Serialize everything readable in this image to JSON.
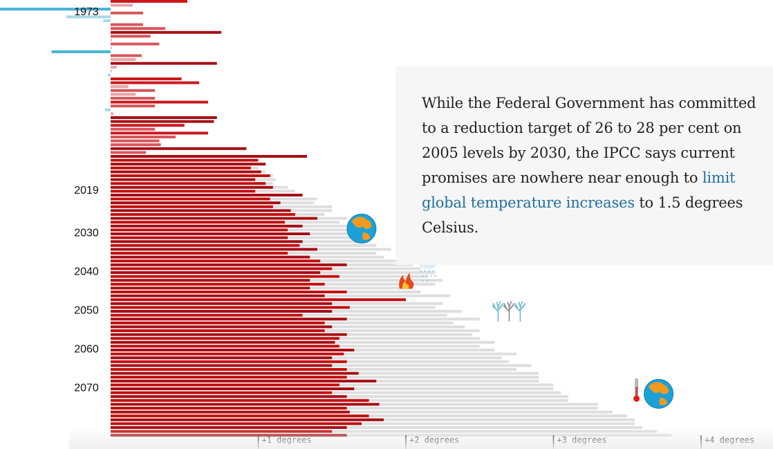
{
  "chart_data": {
    "type": "bar",
    "title": "",
    "orientation": "horizontal",
    "description": "Annual temperature anomaly bars (historical red/blue) with projected additional warming (grey)",
    "year_labels": [
      {
        "year": 1973,
        "label": "1973"
      },
      {
        "year": 2019,
        "label": "2019"
      },
      {
        "year": 2030,
        "label": "2030"
      },
      {
        "year": 2040,
        "label": "2040"
      },
      {
        "year": 2050,
        "label": "2050"
      },
      {
        "year": 2060,
        "label": "2060"
      },
      {
        "year": 2070,
        "label": "2070"
      }
    ],
    "x_ticks": [
      {
        "value": 1,
        "label": "+1 degrees"
      },
      {
        "value": 2,
        "label": "+2 degrees"
      },
      {
        "value": 3,
        "label": "+3 degrees"
      },
      {
        "value": 4,
        "label": "+4 degrees"
      }
    ],
    "xlim": [
      -0.75,
      4.4
    ],
    "start_year": 1971,
    "end_year": 2079,
    "historical_anomaly": [
      0.52,
      0.15,
      -0.75,
      0.22,
      -0.3,
      -0.05,
      0.22,
      0.37,
      0.75,
      0.27,
      0.0,
      0.33,
      0.0,
      -0.4,
      0.21,
      0.17,
      0.72,
      0.04,
      0.0,
      -0.02,
      0.48,
      0.6,
      0.12,
      0.3,
      0.17,
      0.3,
      0.66,
      0.3,
      -0.04,
      0.02,
      0.72,
      0.7,
      0.5,
      0.3,
      0.66,
      0.44,
      0.33,
      0.34,
      0.92,
      0.24,
      1.33
    ],
    "projected_warming": [
      {
        "actual": 1.0,
        "projection": 1.0
      },
      {
        "actual": 1.05,
        "projection": 1.05
      },
      {
        "actual": 0.95,
        "projection": 1.0
      },
      {
        "actual": 1.02,
        "projection": 1.05
      },
      {
        "actual": 1.08,
        "projection": 1.1
      },
      {
        "actual": 0.98,
        "projection": 1.12
      },
      {
        "actual": 1.05,
        "projection": 1.1
      },
      {
        "actual": 1.1,
        "projection": 1.2
      },
      {
        "actual": 0.98,
        "projection": 1.25
      },
      {
        "actual": 1.3,
        "projection": 1.3
      },
      {
        "actual": 1.08,
        "projection": 1.4
      },
      {
        "actual": 1.15,
        "projection": 1.38
      },
      {
        "actual": 1.1,
        "projection": 1.5
      },
      {
        "actual": 1.22,
        "projection": 1.5
      },
      {
        "actual": 1.25,
        "projection": 1.45
      },
      {
        "actual": 1.4,
        "projection": 1.6
      },
      {
        "actual": 1.18,
        "projection": 1.55
      },
      {
        "actual": 1.3,
        "projection": 1.6
      },
      {
        "actual": 1.2,
        "projection": 1.65
      },
      {
        "actual": 1.35,
        "projection": 1.7
      },
      {
        "actual": 1.2,
        "projection": 1.72
      },
      {
        "actual": 1.3,
        "projection": 1.75
      },
      {
        "actual": 1.28,
        "projection": 1.8
      },
      {
        "actual": 1.4,
        "projection": 1.9
      },
      {
        "actual": 1.2,
        "projection": 1.8
      },
      {
        "actual": 1.35,
        "projection": 1.85
      },
      {
        "actual": 1.42,
        "projection": 2.0
      },
      {
        "actual": 1.6,
        "projection": 2.05
      },
      {
        "actual": 1.5,
        "projection": 2.1
      },
      {
        "actual": 1.42,
        "projection": 2.2
      },
      {
        "actual": 1.55,
        "projection": 2.15
      },
      {
        "actual": 1.35,
        "projection": 2.25
      },
      {
        "actual": 1.45,
        "projection": 2.2
      },
      {
        "actual": 1.35,
        "projection": 2.05
      },
      {
        "actual": 1.6,
        "projection": 2.1
      },
      {
        "actual": 1.45,
        "projection": 2.3
      },
      {
        "actual": 2.0,
        "projection": 2.0
      },
      {
        "actual": 1.5,
        "projection": 2.25
      },
      {
        "actual": 1.62,
        "projection": 2.2
      },
      {
        "actual": 1.5,
        "projection": 2.38
      },
      {
        "actual": 1.3,
        "projection": 2.28
      },
      {
        "actual": 1.6,
        "projection": 2.5
      },
      {
        "actual": 1.45,
        "projection": 2.32
      },
      {
        "actual": 1.5,
        "projection": 2.4
      },
      {
        "actual": 1.45,
        "projection": 2.5
      },
      {
        "actual": 1.6,
        "projection": 2.45
      },
      {
        "actual": 1.55,
        "projection": 2.5
      },
      {
        "actual": 1.52,
        "projection": 2.6
      },
      {
        "actual": 1.55,
        "projection": 2.5
      },
      {
        "actual": 1.65,
        "projection": 2.6
      },
      {
        "actual": 1.58,
        "projection": 2.75
      },
      {
        "actual": 1.5,
        "projection": 2.65
      },
      {
        "actual": 1.6,
        "projection": 2.7
      },
      {
        "actual": 1.5,
        "projection": 2.85
      },
      {
        "actual": 1.6,
        "projection": 2.75
      },
      {
        "actual": 1.68,
        "projection": 2.9
      },
      {
        "actual": 1.6,
        "projection": 2.9
      },
      {
        "actual": 1.8,
        "projection": 2.9
      },
      {
        "actual": 1.55,
        "projection": 3.0
      },
      {
        "actual": 1.65,
        "projection": 3.0
      },
      {
        "actual": 1.5,
        "projection": 3.05
      },
      {
        "actual": 1.6,
        "projection": 3.1
      },
      {
        "actual": 1.75,
        "projection": 3.1
      },
      {
        "actual": 1.82,
        "projection": 3.3
      },
      {
        "actual": 1.6,
        "projection": 3.3
      },
      {
        "actual": 1.62,
        "projection": 3.4
      },
      {
        "actual": 1.75,
        "projection": 3.5
      },
      {
        "actual": 1.85,
        "projection": 3.55
      },
      {
        "actual": 1.7,
        "projection": 3.55
      },
      {
        "actual": 1.6,
        "projection": 3.6
      },
      {
        "actual": 1.5,
        "projection": 3.7
      },
      {
        "actual": 1.6,
        "projection": 3.8
      }
    ],
    "icons": [
      {
        "name": "earth-globe",
        "year": 2030,
        "value": 1.7
      },
      {
        "name": "wildfire",
        "year": 2043,
        "value": 2.0
      },
      {
        "name": "rain-cloud",
        "year": 2042,
        "value": 2.12
      },
      {
        "name": "bare-trees",
        "year": 2051,
        "value": 2.7
      },
      {
        "name": "thermometer-globe",
        "year": 2073,
        "value": 3.6
      }
    ],
    "colors": {
      "hot_dark": "#a50f15",
      "hot_mid": "#cb181d",
      "warm": "#d6565a",
      "mild": "#e9a3a5",
      "cool_light": "#a8d8e6",
      "cool_dark": "#42b3d5",
      "projection": "#dedede",
      "actual": "#c40e0e"
    }
  },
  "callout": {
    "text_before": "While the Federal Government has committed to a reduction target of 26 to 28 per cent on 2005 levels by 2030, the IPCC says current promises are nowhere near enough to ",
    "link_text": "limit global temperature increases",
    "text_after": " to 1.5 degrees Celsius."
  }
}
